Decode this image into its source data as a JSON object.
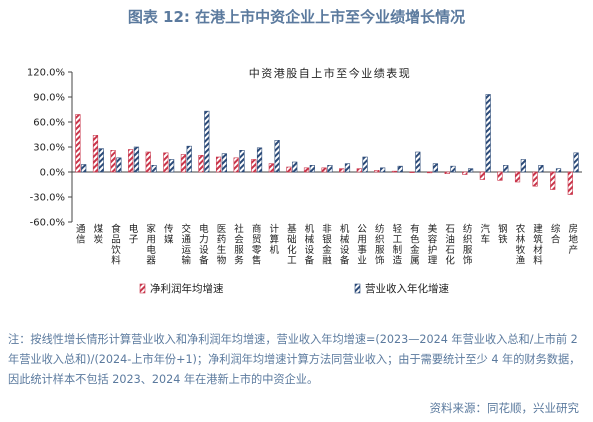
{
  "figure": {
    "title": "图表 12: 在港上市中资企业上市至今业绩增长情况",
    "note": "注：按线性增长情形计算营业收入和净利润年均增速，营业收入年均增速=(2023—2024 年营业收入总和/上市前 2 年营业收入总和)/(2024-上市年份+1)；净利润年均增速计算方法同营业收入；由于需要统计至少 4 年的财务数据，因此统计样本不包括 2023、2024 年在港新上市的中资企业。",
    "source": "资料来源：同花顺，兴业研究"
  },
  "chart_data": {
    "type": "bar",
    "title": "中资港股自上市至今业绩表现",
    "xlabel": "",
    "ylabel": "",
    "ylim": [
      -60,
      120
    ],
    "yticks": [
      -60,
      -30,
      0,
      30,
      60,
      90,
      120
    ],
    "ytick_labels": [
      "-60.0%",
      "-30.0%",
      "0.0%",
      "30.0%",
      "60.0%",
      "90.0%",
      "120.0%"
    ],
    "grid": false,
    "legend_position": "bottom",
    "categories": [
      "通信",
      "煤炭",
      "食品饮料",
      "电子",
      "家用电器",
      "传媒",
      "交通运输",
      "电力设备",
      "医药生物",
      "社会服务",
      "商贸零售",
      "计算机",
      "基础化工",
      "机械设备",
      "非银金融",
      "机械设备",
      "公用事业",
      "纺织服饰",
      "轻工制造",
      "有色金属",
      "美容护理",
      "石油石化",
      "纺织服饰",
      "汽车",
      "钢铁",
      "农林牧渔",
      "建筑材料",
      "综合",
      "房地产"
    ],
    "series": [
      {
        "name": "净利润年均增速",
        "color": "#c9354a",
        "pattern": "hatch-red",
        "values": [
          69,
          44,
          26,
          27,
          24,
          23,
          21,
          20,
          18,
          17,
          15,
          10,
          6,
          5,
          5,
          4,
          4,
          2,
          1,
          0,
          -1,
          -2,
          -3,
          -9,
          -10,
          -12,
          -17,
          -21,
          -27
        ]
      },
      {
        "name": "营业收入年化增速",
        "color": "#2b4a78",
        "pattern": "hatch-blue",
        "values": [
          9,
          28,
          17,
          30,
          8,
          15,
          31,
          73,
          22,
          26,
          29,
          38,
          12,
          8,
          8,
          10,
          18,
          5,
          7,
          24,
          10,
          7,
          4,
          93,
          8,
          15,
          8,
          4,
          23
        ]
      }
    ]
  }
}
